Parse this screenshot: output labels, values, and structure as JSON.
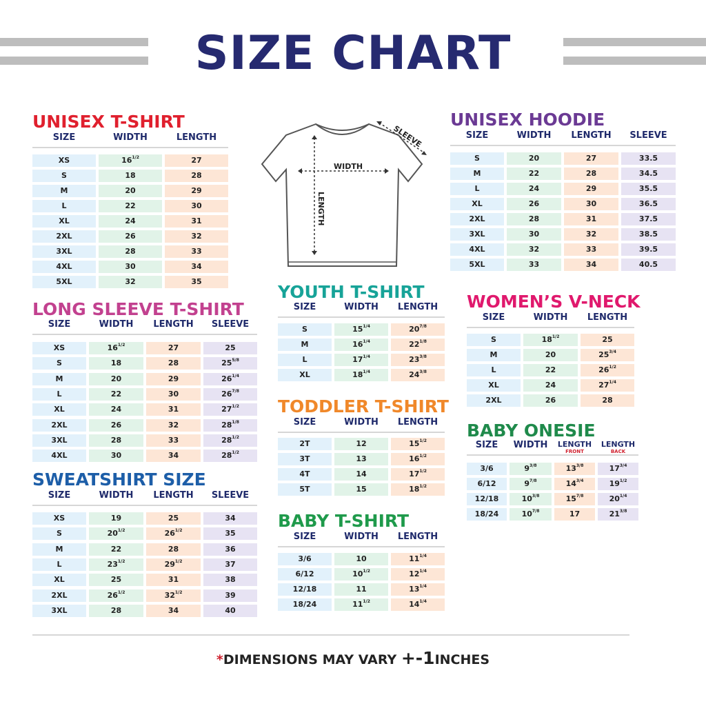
{
  "header": {
    "title": "SIZE CHART"
  },
  "diagram": {
    "width": "WIDTH",
    "length": "LENGTH",
    "sleeve": "SLEEVE"
  },
  "tables": [
    {
      "title": "UNISEX T-SHIRT",
      "headers": [
        "SIZE",
        "WIDTH",
        "LENGTH"
      ],
      "rows": [
        [
          "XS",
          {
            "whole": "16",
            "frac": "1/2"
          },
          "27"
        ],
        [
          "S",
          "18",
          "28"
        ],
        [
          "M",
          "20",
          "29"
        ],
        [
          "L",
          "22",
          "30"
        ],
        [
          "XL",
          "24",
          "31"
        ],
        [
          "2XL",
          "26",
          "32"
        ],
        [
          "3XL",
          "28",
          "33"
        ],
        [
          "4XL",
          "30",
          "34"
        ],
        [
          "5XL",
          "32",
          "35"
        ]
      ]
    },
    {
      "title": "LONG SLEEVE T-SHIRT",
      "headers": [
        "SIZE",
        "WIDTH",
        "LENGTH",
        "SLEEVE"
      ],
      "rows": [
        [
          "XS",
          {
            "whole": "16",
            "frac": "1/2"
          },
          "27",
          "25"
        ],
        [
          "S",
          "18",
          "28",
          {
            "whole": "25",
            "frac": "5/8"
          }
        ],
        [
          "M",
          "20",
          "29",
          {
            "whole": "26",
            "frac": "1/4"
          }
        ],
        [
          "L",
          "22",
          "30",
          {
            "whole": "26",
            "frac": "7/8"
          }
        ],
        [
          "XL",
          "24",
          "31",
          {
            "whole": "27",
            "frac": "1/2"
          }
        ],
        [
          "2XL",
          "26",
          "32",
          {
            "whole": "28",
            "frac": "1/8"
          }
        ],
        [
          "3XL",
          "28",
          "33",
          {
            "whole": "28",
            "frac": "1/2"
          }
        ],
        [
          "4XL",
          "30",
          "34",
          {
            "whole": "28",
            "frac": "1/2"
          }
        ]
      ]
    },
    {
      "title": "SWEATSHIRT SIZE",
      "headers": [
        "SIZE",
        "WIDTH",
        "LENGTH",
        "SLEEVE"
      ],
      "rows": [
        [
          "XS",
          "19",
          "25",
          "34"
        ],
        [
          "S",
          {
            "whole": "20",
            "frac": "1/2"
          },
          {
            "whole": "26",
            "frac": "1/2"
          },
          "35"
        ],
        [
          "M",
          "22",
          "28",
          "36"
        ],
        [
          "L",
          {
            "whole": "23",
            "frac": "1/2"
          },
          {
            "whole": "29",
            "frac": "1/2"
          },
          "37"
        ],
        [
          "XL",
          "25",
          "31",
          "38"
        ],
        [
          "2XL",
          {
            "whole": "26",
            "frac": "1/2"
          },
          {
            "whole": "32",
            "frac": "1/2"
          },
          "39"
        ],
        [
          "3XL",
          "28",
          "34",
          "40"
        ]
      ]
    },
    {
      "title": "UNISEX HOODIE",
      "headers": [
        "SIZE",
        "WIDTH",
        "LENGTH",
        "SLEEVE"
      ],
      "rows": [
        [
          "S",
          "20",
          "27",
          "33.5"
        ],
        [
          "M",
          "22",
          "28",
          "34.5"
        ],
        [
          "L",
          "24",
          "29",
          "35.5"
        ],
        [
          "XL",
          "26",
          "30",
          "36.5"
        ],
        [
          "2XL",
          "28",
          "31",
          "37.5"
        ],
        [
          "3XL",
          "30",
          "32",
          "38.5"
        ],
        [
          "4XL",
          "32",
          "33",
          "39.5"
        ],
        [
          "5XL",
          "33",
          "34",
          "40.5"
        ]
      ]
    },
    {
      "title": "YOUTH T-SHIRT",
      "headers": [
        "SIZE",
        "WIDTH",
        "LENGTH"
      ],
      "rows": [
        [
          "S",
          {
            "whole": "15",
            "frac": "1/4"
          },
          {
            "whole": "20",
            "frac": "7/8"
          }
        ],
        [
          "M",
          {
            "whole": "16",
            "frac": "1/4"
          },
          {
            "whole": "22",
            "frac": "1/8"
          }
        ],
        [
          "L",
          {
            "whole": "17",
            "frac": "1/4"
          },
          {
            "whole": "23",
            "frac": "3/8"
          }
        ],
        [
          "XL",
          {
            "whole": "18",
            "frac": "1/4"
          },
          {
            "whole": "24",
            "frac": "3/8"
          }
        ]
      ]
    },
    {
      "title": "TODDLER T-SHIRT",
      "headers": [
        "SIZE",
        "WIDTH",
        "LENGTH"
      ],
      "rows": [
        [
          "2T",
          "12",
          {
            "whole": "15",
            "frac": "1/2"
          }
        ],
        [
          "3T",
          "13",
          {
            "whole": "16",
            "frac": "1/2"
          }
        ],
        [
          "4T",
          "14",
          {
            "whole": "17",
            "frac": "1/2"
          }
        ],
        [
          "5T",
          "15",
          {
            "whole": "18",
            "frac": "1/2"
          }
        ]
      ]
    },
    {
      "title": "BABY T-SHIRT",
      "headers": [
        "SIZE",
        "WIDTH",
        "LENGTH"
      ],
      "rows": [
        [
          "3/6",
          "10",
          {
            "whole": "11",
            "frac": "1/4"
          }
        ],
        [
          "6/12",
          {
            "whole": "10",
            "frac": "1/2"
          },
          {
            "whole": "12",
            "frac": "1/4"
          }
        ],
        [
          "12/18",
          "11",
          {
            "whole": "13",
            "frac": "1/4"
          }
        ],
        [
          "18/24",
          {
            "whole": "11",
            "frac": "1/2"
          },
          {
            "whole": "14",
            "frac": "1/4"
          }
        ]
      ]
    },
    {
      "title": "WOMEN’S V-NECK",
      "headers": [
        "SIZE",
        "WIDTH",
        "LENGTH"
      ],
      "rows": [
        [
          "S",
          {
            "whole": "18",
            "frac": "1/2"
          },
          "25"
        ],
        [
          "M",
          "20",
          {
            "whole": "25",
            "frac": "3/4"
          }
        ],
        [
          "L",
          "22",
          {
            "whole": "26",
            "frac": "1/2"
          }
        ],
        [
          "XL",
          "24",
          {
            "whole": "27",
            "frac": "1/4"
          }
        ],
        [
          "2XL",
          "26",
          "28"
        ]
      ]
    },
    {
      "title": "BABY ONESIE",
      "headers": [
        "SIZE",
        "WIDTH",
        {
          "text": "LENGTH",
          "sub": "FRONT"
        },
        {
          "text": "LENGTH",
          "sub": "BACK"
        }
      ],
      "rows": [
        [
          "3/6",
          {
            "whole": "9",
            "frac": "3/8"
          },
          {
            "whole": "13",
            "frac": "3/8"
          },
          {
            "whole": "17",
            "frac": "3/4"
          }
        ],
        [
          "6/12",
          {
            "whole": "9",
            "frac": "7/8"
          },
          {
            "whole": "14",
            "frac": "3/4"
          },
          {
            "whole": "19",
            "frac": "1/2"
          }
        ],
        [
          "12/18",
          {
            "whole": "10",
            "frac": "3/8"
          },
          {
            "whole": "15",
            "frac": "7/8"
          },
          {
            "whole": "20",
            "frac": "1/4"
          }
        ],
        [
          "18/24",
          {
            "whole": "10",
            "frac": "7/8"
          },
          "17",
          {
            "whole": "21",
            "frac": "3/8"
          }
        ]
      ]
    }
  ],
  "footer": {
    "asterisk": "*",
    "text": "DIMENSIONS MAY VARY",
    "tolerance": "+-1",
    "unit": "INCHES"
  }
}
